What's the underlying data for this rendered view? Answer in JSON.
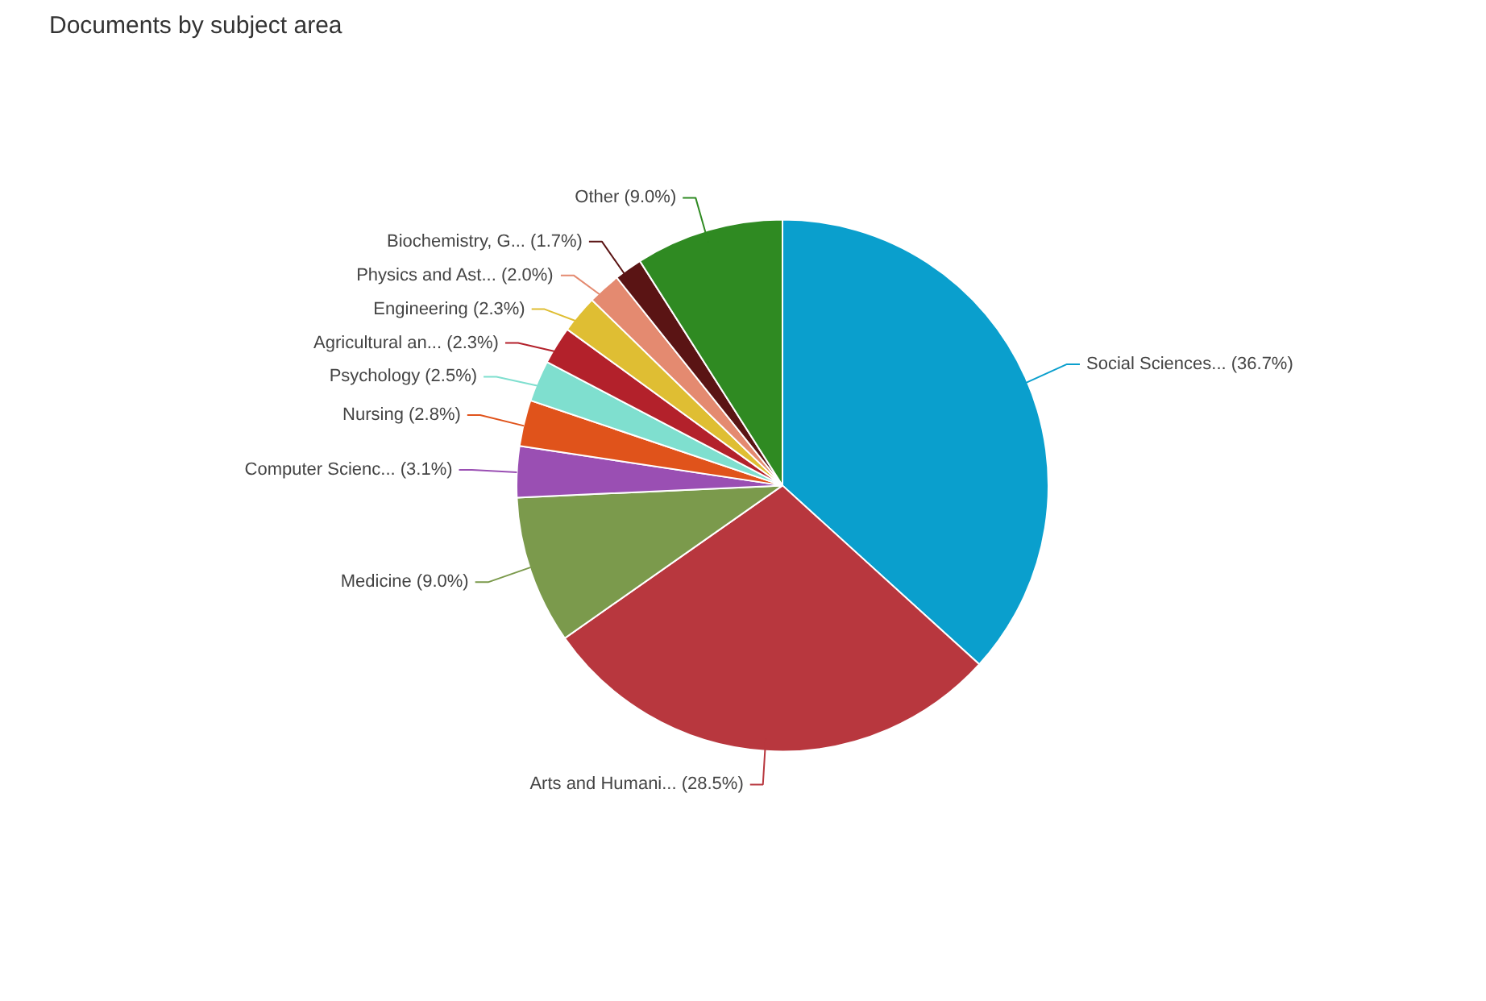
{
  "chart_data": {
    "type": "pie",
    "title": "Documents by subject area",
    "categories": [
      "Social Sciences...",
      "Arts and Humani...",
      "Medicine",
      "Computer Scienc...",
      "Nursing",
      "Psychology",
      "Agricultural an...",
      "Engineering",
      "Physics and Ast...",
      "Biochemistry, G...",
      "Other"
    ],
    "values": [
      36.7,
      28.5,
      9.0,
      3.1,
      2.8,
      2.5,
      2.3,
      2.3,
      2.0,
      1.7,
      9.0
    ],
    "value_labels": [
      "(36.7%)",
      "(28.5%)",
      "(9.0%)",
      "(3.1%)",
      "(2.8%)",
      "(2.5%)",
      "(2.3%)",
      "(2.3%)",
      "(2.0%)",
      "(1.7%)",
      "(9.0%)"
    ],
    "colors": [
      "#0a9fcd",
      "#b8373e",
      "#7b9a4c",
      "#9a4fb3",
      "#e0531b",
      "#7fdfcf",
      "#b3212b",
      "#dfbe33",
      "#e48a70",
      "#5a1414",
      "#2f8a22"
    ]
  }
}
